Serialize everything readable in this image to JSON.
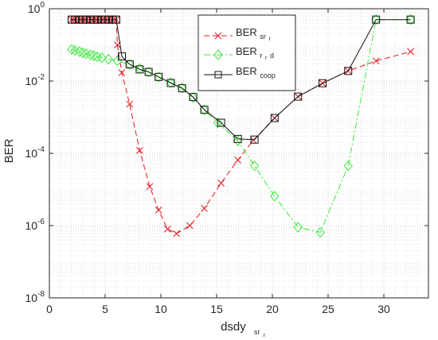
{
  "chart_data": {
    "type": "line",
    "title": "",
    "xlabel": {
      "main": "dsdy",
      "sub": "sr",
      "subsub": "r"
    },
    "ylabel": "BER",
    "xlim": [
      0,
      34
    ],
    "ylim": [
      1e-08,
      1
    ],
    "yscale": "log",
    "grid": true,
    "legend_position": "top-right",
    "x_ticks": [
      "0",
      "5",
      "10",
      "15",
      "20",
      "25",
      "30"
    ],
    "y_ticks": [
      {
        "base": "10",
        "exp": "0"
      },
      {
        "base": "10",
        "exp": "-2"
      },
      {
        "base": "10",
        "exp": "-4"
      },
      {
        "base": "10",
        "exp": "-6"
      },
      {
        "base": "10",
        "exp": "-8"
      }
    ],
    "series": [
      {
        "name": "BER",
        "sub": "sr",
        "subsub": "r",
        "color": "#e8141c",
        "line": "dashed",
        "marker": "x",
        "x": [
          2,
          2.3,
          2.7,
          3,
          3.3,
          3.7,
          4,
          4.3,
          4.7,
          5,
          5.3,
          5.7,
          6,
          6.1,
          6.5,
          7.2,
          8.1,
          9.0,
          9.8,
          10.6,
          11.4,
          12.6,
          13.9,
          15.4,
          16.9,
          18.3,
          20.2,
          22.3,
          24.5,
          26.8,
          29.3,
          32.4
        ],
        "y": [
          0.5,
          0.5,
          0.5,
          0.5,
          0.5,
          0.5,
          0.5,
          0.5,
          0.5,
          0.5,
          0.5,
          0.5,
          0.5,
          0.1,
          0.017,
          0.0023,
          0.00012,
          1.2e-05,
          2.7e-06,
          8e-07,
          6e-07,
          1e-06,
          3e-06,
          1.5e-05,
          6.5e-05,
          0.00023,
          0.00095,
          0.0037,
          0.0087,
          0.019,
          0.036,
          0.065
        ]
      },
      {
        "name": "BER",
        "sub": "r",
        "subsub": "r",
        "sub_after": "d",
        "color": "#3ee83e",
        "line": "dashdot",
        "marker": "diamond",
        "x": [
          2,
          2.3,
          2.7,
          3,
          3.3,
          3.7,
          4,
          4.3,
          4.7,
          5.3,
          6.1,
          7.2,
          8.1,
          8.9,
          9.8,
          10.9,
          11.9,
          12.9,
          13.9,
          15.1,
          16.9,
          18.4,
          20.2,
          22.3,
          24.3,
          26.8,
          29.3,
          32.4
        ],
        "y": [
          0.075,
          0.07,
          0.065,
          0.06,
          0.057,
          0.053,
          0.05,
          0.047,
          0.044,
          0.04,
          0.036,
          0.029,
          0.022,
          0.0178,
          0.013,
          0.009,
          0.0065,
          0.0035,
          0.0016,
          0.0007,
          0.00022,
          4.5e-05,
          6.5e-06,
          9e-07,
          6.5e-07,
          4.5e-05,
          0.5,
          0.5
        ]
      },
      {
        "name": "BER",
        "sub": "coop",
        "subsub": "",
        "color": "#111111",
        "line": "solid",
        "marker": "square",
        "x": [
          2,
          2.3,
          2.7,
          3,
          3.3,
          3.7,
          4,
          4.3,
          4.7,
          5,
          5.3,
          5.7,
          6,
          6.5,
          7.2,
          8.1,
          8.9,
          9.8,
          10.9,
          11.9,
          12.9,
          13.9,
          15.4,
          16.9,
          18.4,
          20.2,
          22.3,
          24.5,
          26.8,
          29.3,
          32.4
        ],
        "y": [
          0.5,
          0.5,
          0.5,
          0.5,
          0.5,
          0.5,
          0.5,
          0.5,
          0.5,
          0.5,
          0.5,
          0.5,
          0.5,
          0.048,
          0.029,
          0.021,
          0.0178,
          0.013,
          0.0088,
          0.0063,
          0.0036,
          0.0016,
          0.0007,
          0.00025,
          0.00024,
          0.00095,
          0.0037,
          0.0087,
          0.019,
          0.5,
          0.5
        ]
      }
    ]
  }
}
